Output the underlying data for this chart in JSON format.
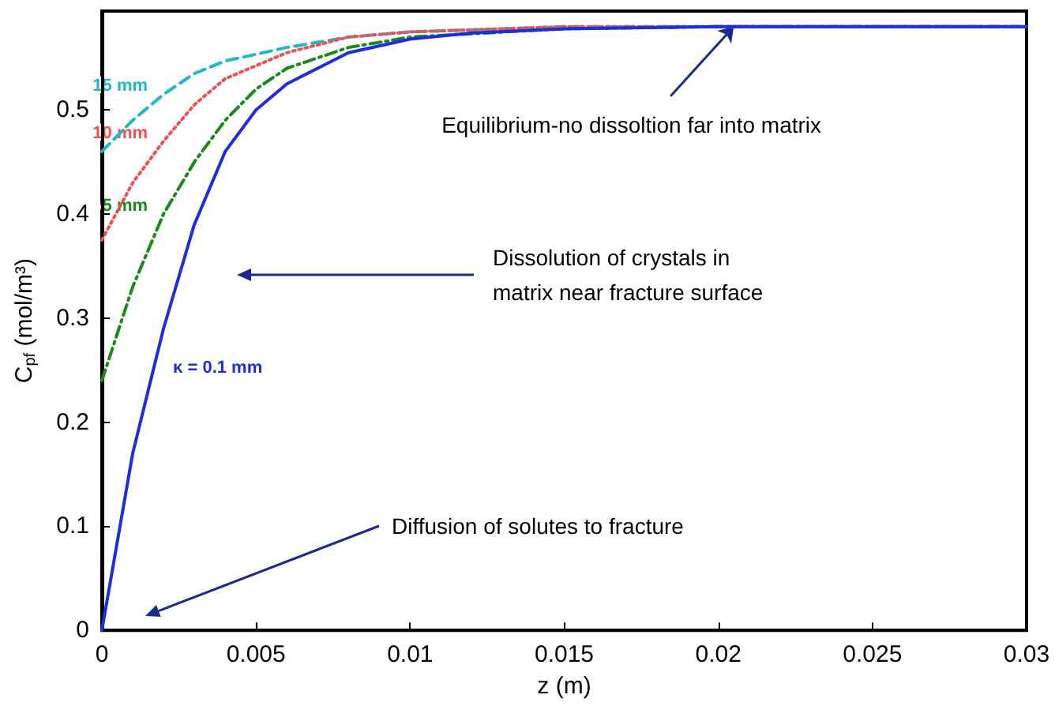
{
  "chart_data": {
    "type": "line",
    "xlabel": "z (m)",
    "ylabel": "C$_{pf}$ (mol/m³)",
    "xlim": [
      0,
      0.03
    ],
    "xticks": [
      0,
      0.005,
      0.01,
      0.015,
      0.02,
      0.025,
      0.03
    ],
    "ylim": [
      0,
      0.595
    ],
    "yticks": [
      0,
      0.1,
      0.2,
      0.3,
      0.4,
      0.5
    ],
    "grid": false,
    "legend": false,
    "marker": "none",
    "series": [
      {
        "name": "κ = 0.1 mm",
        "color": "#1f2de0",
        "line_style": "solid",
        "x": [
          0,
          0.001,
          0.002,
          0.003,
          0.004,
          0.005,
          0.006,
          0.008,
          0.01,
          0.012,
          0.015,
          0.02,
          0.03
        ],
        "values": [
          0,
          0.17,
          0.29,
          0.39,
          0.46,
          0.5,
          0.525,
          0.555,
          0.568,
          0.574,
          0.578,
          0.58,
          0.58
        ]
      },
      {
        "name": "5 mm",
        "color": "#1a8a1a",
        "line_style": "dashdot",
        "x": [
          0,
          0.001,
          0.002,
          0.003,
          0.004,
          0.005,
          0.006,
          0.008,
          0.01,
          0.015,
          0.02,
          0.03
        ],
        "values": [
          0.24,
          0.33,
          0.4,
          0.45,
          0.49,
          0.52,
          0.54,
          0.56,
          0.57,
          0.578,
          0.58,
          0.58
        ]
      },
      {
        "name": "10 mm",
        "color": "#f05050",
        "line_style": "dotted",
        "x": [
          0,
          0.001,
          0.002,
          0.003,
          0.004,
          0.006,
          0.008,
          0.01,
          0.015,
          0.03
        ],
        "values": [
          0.375,
          0.43,
          0.47,
          0.505,
          0.53,
          0.555,
          0.57,
          0.575,
          0.58,
          0.58
        ]
      },
      {
        "name": "15 mm",
        "color": "#20b8c8",
        "line_style": "dashed",
        "x": [
          0,
          0.001,
          0.002,
          0.003,
          0.004,
          0.006,
          0.008,
          0.01,
          0.015,
          0.03
        ],
        "values": [
          0.46,
          0.49,
          0.515,
          0.535,
          0.547,
          0.56,
          0.57,
          0.575,
          0.58,
          0.58
        ]
      }
    ],
    "annotations": [
      {
        "text": "Equilibrium-no dissoltion far into matrix",
        "x": 0.0205,
        "y": 0.58
      },
      "Dissolution of crystals in\nmatrix near fracture surface",
      "Diffusion of solutes to fracture"
    ]
  }
}
